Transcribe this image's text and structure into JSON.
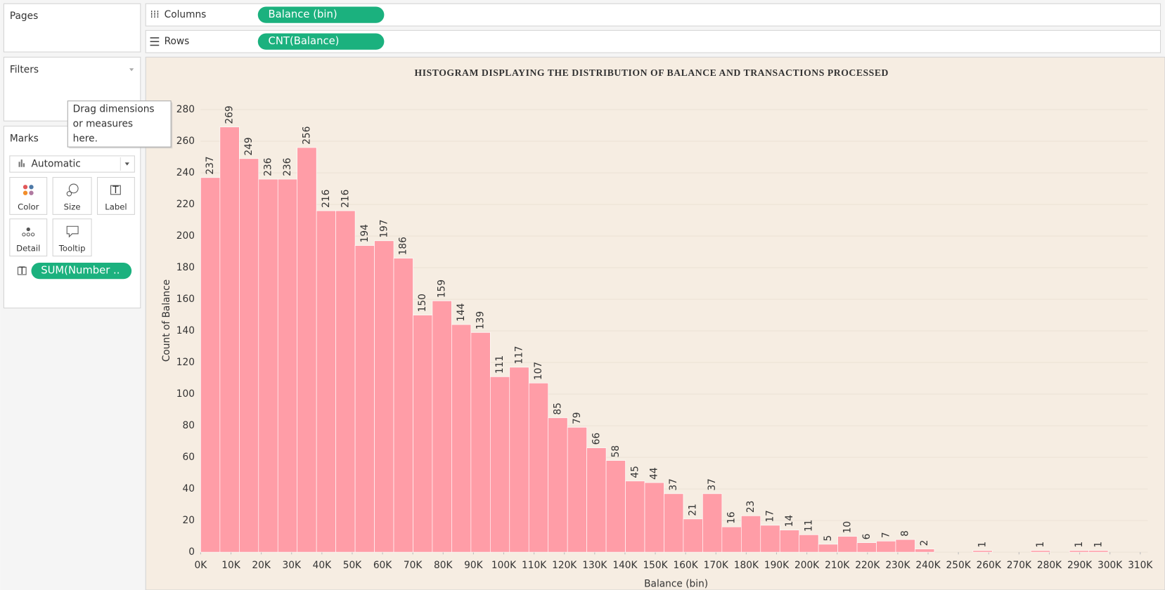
{
  "shelves": {
    "pages": "Pages",
    "columns": {
      "label": "Columns",
      "pill": "Balance (bin)"
    },
    "rows": {
      "label": "Rows",
      "pill": "CNT(Balance)"
    },
    "filters": "Filters"
  },
  "marks": {
    "title": "Marks",
    "type": "Automatic",
    "buttons": [
      "Color",
      "Size",
      "Label",
      "Detail",
      "Tooltip"
    ],
    "pill": "SUM(Number .."
  },
  "tooltip": [
    "Drag dimensions",
    "or measures",
    "here."
  ],
  "chart_data": {
    "type": "histogram",
    "title": "HISTOGRAM DISPLAYING THE DISTRIBUTION OF BALANCE AND TRANSACTIONS PROCESSED",
    "x_label": "Balance (bin)",
    "y_label": "Count of Balance",
    "bins": [
      0,
      6370,
      12740,
      19110,
      25480,
      31850,
      38220,
      44590,
      50960,
      57330,
      63700,
      70070,
      76440,
      82810,
      89180,
      95550,
      101920,
      108290,
      114660,
      121030,
      127400,
      133770,
      140140,
      146510,
      152880,
      159250,
      165620,
      171990,
      178360,
      184730,
      191100,
      197470,
      203840,
      210210,
      216580,
      222950,
      229320,
      235690,
      242060,
      248430,
      254800,
      261170,
      267540,
      273910,
      280280,
      286650,
      293020,
      299390
    ],
    "values": [
      237,
      269,
      249,
      236,
      236,
      256,
      216,
      216,
      194,
      197,
      186,
      150,
      159,
      144,
      139,
      111,
      117,
      107,
      85,
      79,
      66,
      58,
      45,
      44,
      37,
      21,
      37,
      16,
      23,
      17,
      14,
      11,
      5,
      10,
      6,
      7,
      8,
      2,
      null,
      null,
      1,
      null,
      null,
      1,
      null,
      1,
      1
    ],
    "color": "#ff9da7",
    "background": "#f6ede2",
    "grid": true,
    "xlim": [
      0,
      312500
    ],
    "xticks": [
      {
        "value": 0,
        "label": "0K"
      },
      {
        "value": 10000,
        "label": "10K"
      },
      {
        "value": 20000,
        "label": "20K"
      },
      {
        "value": 30000,
        "label": "30K"
      },
      {
        "value": 40000,
        "label": "40K"
      },
      {
        "value": 50000,
        "label": "50K"
      },
      {
        "value": 60000,
        "label": "60K"
      },
      {
        "value": 70000,
        "label": "70K"
      },
      {
        "value": 80000,
        "label": "80K"
      },
      {
        "value": 90000,
        "label": "90K"
      },
      {
        "value": 100000,
        "label": "100K"
      },
      {
        "value": 110000,
        "label": "110K"
      },
      {
        "value": 120000,
        "label": "120K"
      },
      {
        "value": 130000,
        "label": "130K"
      },
      {
        "value": 140000,
        "label": "140K"
      },
      {
        "value": 150000,
        "label": "150K"
      },
      {
        "value": 160000,
        "label": "160K"
      },
      {
        "value": 170000,
        "label": "170K"
      },
      {
        "value": 180000,
        "label": "180K"
      },
      {
        "value": 190000,
        "label": "190K"
      },
      {
        "value": 200000,
        "label": "200K"
      },
      {
        "value": 210000,
        "label": "210K"
      },
      {
        "value": 220000,
        "label": "220K"
      },
      {
        "value": 230000,
        "label": "230K"
      },
      {
        "value": 240000,
        "label": "240K"
      },
      {
        "value": 250000,
        "label": "250K"
      },
      {
        "value": 260000,
        "label": "260K"
      },
      {
        "value": 270000,
        "label": "270K"
      },
      {
        "value": 280000,
        "label": "280K"
      },
      {
        "value": 290000,
        "label": "290K"
      },
      {
        "value": 300000,
        "label": "300K"
      },
      {
        "value": 310000,
        "label": "310K"
      }
    ],
    "ylim": [
      0,
      293
    ],
    "yticks": [
      0,
      20,
      40,
      60,
      80,
      100,
      120,
      140,
      160,
      180,
      200,
      220,
      240,
      260,
      280
    ]
  }
}
